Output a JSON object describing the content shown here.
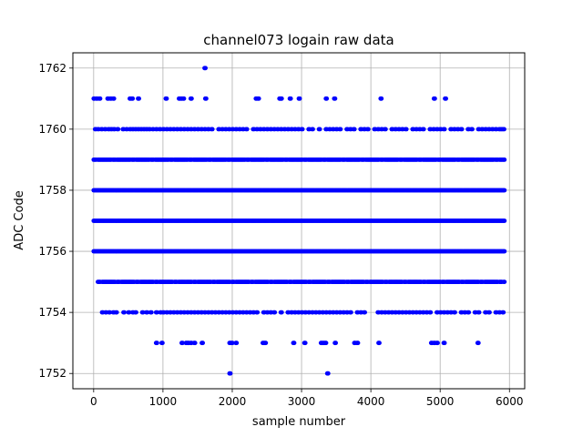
{
  "chart_data": {
    "type": "scatter",
    "title": "channel073 logain raw data",
    "xlabel": "sample number",
    "ylabel": "ADC Code",
    "xlim": [
      -300,
      6220
    ],
    "ylim": [
      1751.5,
      1762.5
    ],
    "x_ticks": [
      0,
      1000,
      2000,
      3000,
      4000,
      5000,
      6000
    ],
    "y_ticks": [
      1752,
      1754,
      1756,
      1758,
      1760,
      1762
    ],
    "grid": true,
    "marker_color": "#0000ff",
    "sample_count": 5936,
    "dense_levels": [
      {
        "y": 1756,
        "x_start": 0,
        "x_end": 5935
      },
      {
        "y": 1757,
        "x_start": 0,
        "x_end": 5935
      },
      {
        "y": 1758,
        "x_start": 0,
        "x_end": 5935
      }
    ],
    "semi_dense_levels": [
      {
        "y": 1759,
        "x_start": 0,
        "x_end": 5935
      },
      {
        "y": 1755,
        "x_start": 60,
        "x_end": 5935
      }
    ],
    "sparse_levels": [
      {
        "y": 1760,
        "x": [
          20,
          60,
          110,
          160,
          210,
          250,
          290,
          340,
          420,
          470,
          520,
          560,
          600,
          640,
          680,
          720,
          760,
          800,
          850,
          900,
          950,
          1000,
          1050,
          1100,
          1150,
          1200,
          1250,
          1300,
          1350,
          1400,
          1450,
          1500,
          1550,
          1600,
          1650,
          1700,
          1800,
          1850,
          1900,
          1950,
          2000,
          2050,
          2100,
          2150,
          2200,
          2300,
          2350,
          2400,
          2450,
          2500,
          2550,
          2600,
          2650,
          2700,
          2750,
          2800,
          2850,
          2900,
          2950,
          3000,
          3100,
          3150,
          3250,
          3350,
          3400,
          3450,
          3500,
          3550,
          3650,
          3700,
          3750,
          3850,
          3900,
          3950,
          4050,
          4100,
          4150,
          4200,
          4300,
          4350,
          4400,
          4450,
          4500,
          4600,
          4650,
          4700,
          4750,
          4850,
          4900,
          4950,
          5000,
          5050,
          5150,
          5200,
          5250,
          5300,
          5400,
          5450,
          5550,
          5600,
          5650,
          5700,
          5750,
          5800,
          5850,
          5880,
          5910
        ]
      },
      {
        "y": 1754,
        "x": [
          120,
          170,
          220,
          280,
          320,
          430,
          500,
          560,
          600,
          700,
          760,
          820,
          900,
          960,
          1000,
          1050,
          1100,
          1150,
          1200,
          1250,
          1300,
          1350,
          1400,
          1450,
          1500,
          1550,
          1600,
          1650,
          1700,
          1750,
          1800,
          1850,
          1900,
          1950,
          2000,
          2050,
          2100,
          2150,
          2200,
          2250,
          2300,
          2350,
          2450,
          2500,
          2550,
          2600,
          2700,
          2800,
          2850,
          2900,
          2950,
          3000,
          3050,
          3100,
          3150,
          3200,
          3250,
          3300,
          3350,
          3400,
          3450,
          3500,
          3550,
          3600,
          3650,
          3700,
          3800,
          3850,
          3900,
          4100,
          4150,
          4200,
          4250,
          4300,
          4350,
          4400,
          4450,
          4500,
          4550,
          4600,
          4650,
          4700,
          4750,
          4800,
          4850,
          4950,
          5000,
          5050,
          5100,
          5150,
          5200,
          5300,
          5350,
          5400,
          5500,
          5550,
          5650,
          5700,
          5800,
          5850,
          5900
        ]
      },
      {
        "y": 1761,
        "x": [
          0,
          40,
          80,
          200,
          240,
          280,
          520,
          550,
          640,
          1040,
          1230,
          1260,
          1290,
          1400,
          1610,
          2340,
          2370,
          2680,
          2700,
          2830,
          2960,
          3350,
          3470,
          4140,
          4910,
          5070
        ]
      },
      {
        "y": 1753,
        "x": [
          900,
          980,
          1270,
          1330,
          1360,
          1400,
          1450,
          1560,
          1960,
          1990,
          2050,
          2440,
          2470,
          2880,
          3040,
          3280,
          3310,
          3340,
          3480,
          3760,
          3800,
          4110,
          4870,
          4910,
          4950,
          5050,
          5540
        ]
      },
      {
        "y": 1762,
        "x": [
          1600
        ]
      },
      {
        "y": 1752,
        "x": [
          1960,
          3370
        ]
      }
    ]
  }
}
